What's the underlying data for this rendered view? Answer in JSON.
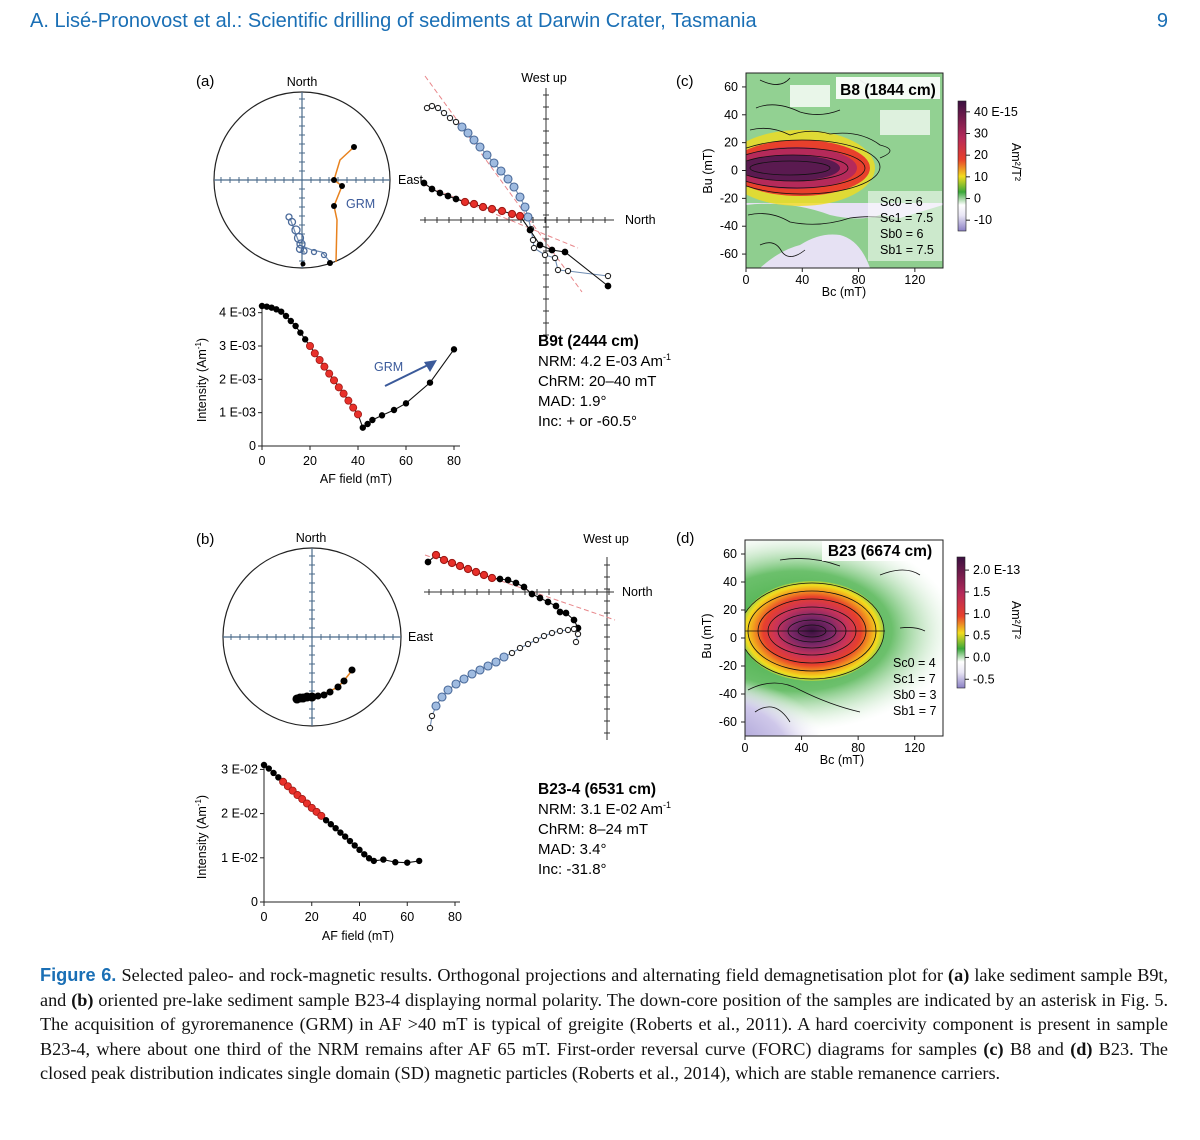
{
  "header": {
    "running_title": "A. Lisé-Pronovost et al.: Scientific drilling of sediments at Darwin Crater, Tasmania",
    "page_number": "9"
  },
  "panels": {
    "a": {
      "label": "(a)",
      "stereo_north": "North",
      "stereo_east": "East",
      "grm_label": "GRM",
      "zij_west_up": "West up",
      "zij_north": "North",
      "intensity_ylabel": "Intensity (Am",
      "intensity_ylabel_sup": "-1",
      "intensity_ylabel_end": ")",
      "intensity_xlabel": "AF field (mT)",
      "sample": {
        "name": "B9t (2444 cm)",
        "nrm": "NRM: 4.2 E-03 Am",
        "nrm_sup": "-1",
        "chrm": "ChRM: 20–40 mT",
        "mad": "MAD: 1.9°",
        "inc": "Inc: + or -60.5°"
      }
    },
    "b": {
      "label": "(b)",
      "stereo_north": "North",
      "stereo_east": "East",
      "zij_west_up": "West up",
      "zij_north": "North",
      "intensity_ylabel": "Intensity (Am",
      "intensity_ylabel_sup": "-1",
      "intensity_ylabel_end": ")",
      "intensity_xlabel": "AF field (mT)",
      "sample": {
        "name": "B23-4 (6531 cm)",
        "nrm": "NRM: 3.1 E-02 Am",
        "nrm_sup": "-1",
        "chrm": "ChRM: 8–24 mT",
        "mad": "MAD: 3.4°",
        "inc": "Inc: -31.8°"
      }
    },
    "c": {
      "label": "(c)",
      "title": "B8 (1844 cm)",
      "ylabel": "Bu (mT)",
      "xlabel": "Bc (mT)",
      "colorbar_unit": "Am²/T²",
      "params": [
        "Sc0 = 6",
        "Sc1 = 7.5",
        "Sb0 = 6",
        "Sb1 = 7.5"
      ]
    },
    "d": {
      "label": "(d)",
      "title": "B23 (6674 cm)",
      "ylabel": "Bu (mT)",
      "xlabel": "Bc (mT)",
      "colorbar_unit": "Am²/T²",
      "params": [
        "Sc0 = 4",
        "Sc1 = 7",
        "Sb0 = 3",
        "Sb1 = 7"
      ]
    }
  },
  "caption": {
    "label": "Figure 6.",
    "p1": " Selected paleo- and rock-magnetic results. Orthogonal projections and alternating field demagnetisation plot for ",
    "a": "(a)",
    "p2": " lake sediment sample B9t, and ",
    "b": "(b)",
    "p3": " oriented pre-lake sediment sample B23-4 displaying normal polarity. The down-core position of the samples are indicated by an asterisk in Fig. 5. The acquisition of gyroremanence (GRM) in AF >40 mT is typical of greigite (Roberts et al., 2011). A hard coercivity component is present in sample B23-4, where about one third of the NRM remains after AF 65 mT. First-order reversal curve (FORC) diagrams for samples ",
    "c": "(c)",
    "p4": " B8 and ",
    "d": "(d)",
    "p5": " B23. The closed peak distribution indicates single domain (SD) magnetic particles (Roberts et al., 2014), which are stable remanence carriers."
  },
  "chart_data": [
    {
      "id": "intensity-a",
      "type": "line",
      "title": "",
      "xlabel": "AF field (mT)",
      "ylabel": "Intensity (Am-1)",
      "xlim": [
        0,
        80
      ],
      "ylim": [
        0,
        0.0042
      ],
      "x_ticks": [
        "0",
        "20",
        "40",
        "60",
        "80"
      ],
      "y_ticks": [
        "0",
        "1 E-03",
        "2 E-03",
        "3 E-03",
        "4 E-03"
      ],
      "series": [
        {
          "x": [
            0,
            2,
            4,
            6,
            8,
            10,
            12,
            14,
            16,
            18,
            20,
            22,
            24,
            26,
            28,
            30,
            32,
            34,
            36,
            38,
            40,
            42,
            44,
            46,
            50,
            55,
            60,
            70,
            80
          ],
          "y": [
            0.0042,
            0.00418,
            0.00415,
            0.0041,
            0.00403,
            0.0039,
            0.00375,
            0.0036,
            0.0034,
            0.0032,
            0.003,
            0.00278,
            0.00258,
            0.00238,
            0.00217,
            0.00197,
            0.00176,
            0.00157,
            0.00136,
            0.00115,
            0.00095,
            0.00055,
            0.00066,
            0.00078,
            0.00092,
            0.00108,
            0.00128,
            0.0019,
            0.0029
          ],
          "chrm_range": [
            20,
            40
          ]
        }
      ]
    },
    {
      "id": "intensity-b",
      "type": "line",
      "title": "",
      "xlabel": "AF field (mT)",
      "ylabel": "Intensity (Am-1)",
      "xlim": [
        0,
        80
      ],
      "ylim": [
        0,
        0.031
      ],
      "x_ticks": [
        "0",
        "20",
        "40",
        "60",
        "80"
      ],
      "y_ticks": [
        "0",
        "1 E-02",
        "2 E-02",
        "3 E-02"
      ],
      "series": [
        {
          "x": [
            0,
            2,
            4,
            6,
            8,
            10,
            12,
            14,
            16,
            18,
            20,
            22,
            24,
            26,
            28,
            30,
            32,
            34,
            36,
            38,
            40,
            42,
            44,
            46,
            50,
            55,
            60,
            65
          ],
          "y": [
            0.031,
            0.0302,
            0.0292,
            0.0282,
            0.0272,
            0.0262,
            0.0252,
            0.0242,
            0.0233,
            0.0223,
            0.0213,
            0.0204,
            0.0195,
            0.0185,
            0.0176,
            0.0167,
            0.0157,
            0.0148,
            0.0138,
            0.0128,
            0.0118,
            0.0108,
            0.0099,
            0.0093,
            0.0096,
            0.009,
            0.0089,
            0.0093
          ],
          "chrm_range": [
            8,
            24
          ]
        }
      ]
    },
    {
      "id": "forc-c",
      "type": "heatmap",
      "title": "B8 (1844 cm)",
      "xlabel": "Bc (mT)",
      "ylabel": "Bu (mT)",
      "xlim": [
        0,
        140
      ],
      "ylim": [
        -70,
        70
      ],
      "x_ticks": [
        "0",
        "40",
        "80",
        "120"
      ],
      "y_ticks": [
        "60",
        "40",
        "20",
        "0",
        "-20",
        "-40",
        "-60"
      ],
      "colorbar_ticks": [
        "40 E-15",
        "30",
        "20",
        "10",
        "0",
        "-10"
      ],
      "colorbar_range": [
        -15,
        45
      ],
      "colors": [
        "#8a7fc4",
        "#e9e6f5",
        "#ffffff",
        "#3aa83a",
        "#f2dc1e",
        "#e8402c",
        "#b52a5a",
        "#3b1040"
      ]
    },
    {
      "id": "forc-d",
      "type": "heatmap",
      "title": "B23 (6674 cm)",
      "xlabel": "Bc (mT)",
      "ylabel": "Bu (mT)",
      "xlim": [
        0,
        140
      ],
      "ylim": [
        -70,
        70
      ],
      "x_ticks": [
        "0",
        "40",
        "80",
        "120"
      ],
      "y_ticks": [
        "60",
        "40",
        "20",
        "0",
        "-20",
        "-40",
        "-60"
      ],
      "colorbar_ticks": [
        "2.0 E-13",
        "1.5",
        "1.0",
        "0.5",
        "0.0",
        "-0.5"
      ],
      "colorbar_range": [
        -0.7,
        2.3
      ],
      "colors": [
        "#8a7fc4",
        "#e9e6f5",
        "#ffffff",
        "#3aa83a",
        "#f2dc1e",
        "#e8402c",
        "#b52a5a",
        "#3b1040"
      ]
    }
  ]
}
